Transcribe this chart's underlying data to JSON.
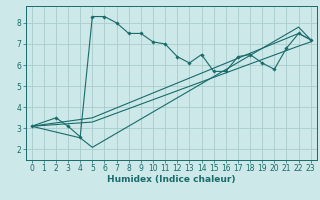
{
  "title": "",
  "xlabel": "Humidex (Indice chaleur)",
  "xlim": [
    -0.5,
    23.5
  ],
  "ylim": [
    1.5,
    8.8
  ],
  "xticks": [
    0,
    1,
    2,
    3,
    4,
    5,
    6,
    7,
    8,
    9,
    10,
    11,
    12,
    13,
    14,
    15,
    16,
    17,
    18,
    19,
    20,
    21,
    22,
    23
  ],
  "yticks": [
    2,
    3,
    4,
    5,
    6,
    7,
    8
  ],
  "bg_color": "#cce8e8",
  "grid_color": "#aacccc",
  "line_color": "#1a6b6b",
  "series": [
    {
      "x": [
        0,
        2,
        3,
        4,
        5,
        6,
        7,
        8,
        9,
        10,
        11,
        12,
        13,
        14,
        15,
        16,
        17,
        18,
        19,
        20,
        21,
        22,
        23
      ],
      "y": [
        3.1,
        3.5,
        3.1,
        2.6,
        8.3,
        8.3,
        8.0,
        7.5,
        7.5,
        7.1,
        7.0,
        6.4,
        6.1,
        6.5,
        5.7,
        5.7,
        6.4,
        6.5,
        6.1,
        5.8,
        6.8,
        7.5,
        7.2
      ]
    },
    {
      "x": [
        0,
        5,
        22,
        23
      ],
      "y": [
        3.1,
        3.5,
        7.5,
        7.2
      ]
    },
    {
      "x": [
        0,
        5,
        22,
        23
      ],
      "y": [
        3.1,
        3.3,
        6.9,
        7.1
      ]
    },
    {
      "x": [
        0,
        4,
        5,
        22,
        23
      ],
      "y": [
        3.1,
        2.55,
        2.1,
        7.8,
        7.2
      ]
    }
  ]
}
